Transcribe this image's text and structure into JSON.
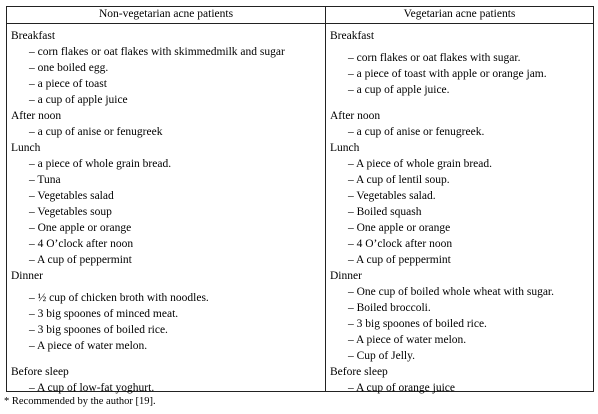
{
  "table": {
    "header_left": "Non-vegetarian acne patients",
    "header_right": "Vegetarian acne patients",
    "left": {
      "breakfast_title": "Breakfast",
      "breakfast_items": [
        "– corn flakes or oat flakes with skimmedmilk and sugar",
        "– one boiled egg.",
        "– a piece of toast",
        "– a cup of apple juice"
      ],
      "afternoon_title": "After noon",
      "afternoon_items": [
        "– a cup of anise or fenugreek"
      ],
      "lunch_title": "Lunch",
      "lunch_items": [
        "– a piece of whole grain bread.",
        "– Tuna",
        "– Vegetables salad",
        "– Vegetables soup",
        "– One apple or orange",
        "– 4 O’clock after noon",
        "– A cup of peppermint"
      ],
      "dinner_title": "Dinner",
      "dinner_items": [
        "– ½ cup of chicken broth with noodles.",
        "– 3 big spoones of minced meat.",
        "– 3 big spoones of boiled rice.",
        "– A piece of water melon."
      ],
      "sleep_title": "Before sleep",
      "sleep_items": [
        "– A cup of low-fat yoghurt."
      ]
    },
    "right": {
      "breakfast_title": "Breakfast",
      "breakfast_items": [
        "– corn flakes or oat flakes with sugar.",
        "– a piece of toast with apple or orange jam.",
        "– a cup of apple juice."
      ],
      "afternoon_title": "After noon",
      "afternoon_items": [
        "– a cup of anise or fenugreek."
      ],
      "lunch_title": "Lunch",
      "lunch_items": [
        "– A piece of whole grain bread.",
        "– A cup of lentil soup.",
        "– Vegetables salad.",
        "– Boiled squash",
        "– One apple or orange",
        "– 4 O’clock after noon",
        "– A cup of peppermint"
      ],
      "dinner_title": "Dinner",
      "dinner_items": [
        "– One cup of boiled whole wheat with sugar.",
        "– Boiled broccoli.",
        "– 3 big spoones of boiled rice.",
        "– A piece of water melon.",
        "– Cup of Jelly."
      ],
      "sleep_title": "Before sleep",
      "sleep_items": [
        "– A cup of orange juice"
      ]
    }
  },
  "footnote": "* Recommended by the author [19]."
}
